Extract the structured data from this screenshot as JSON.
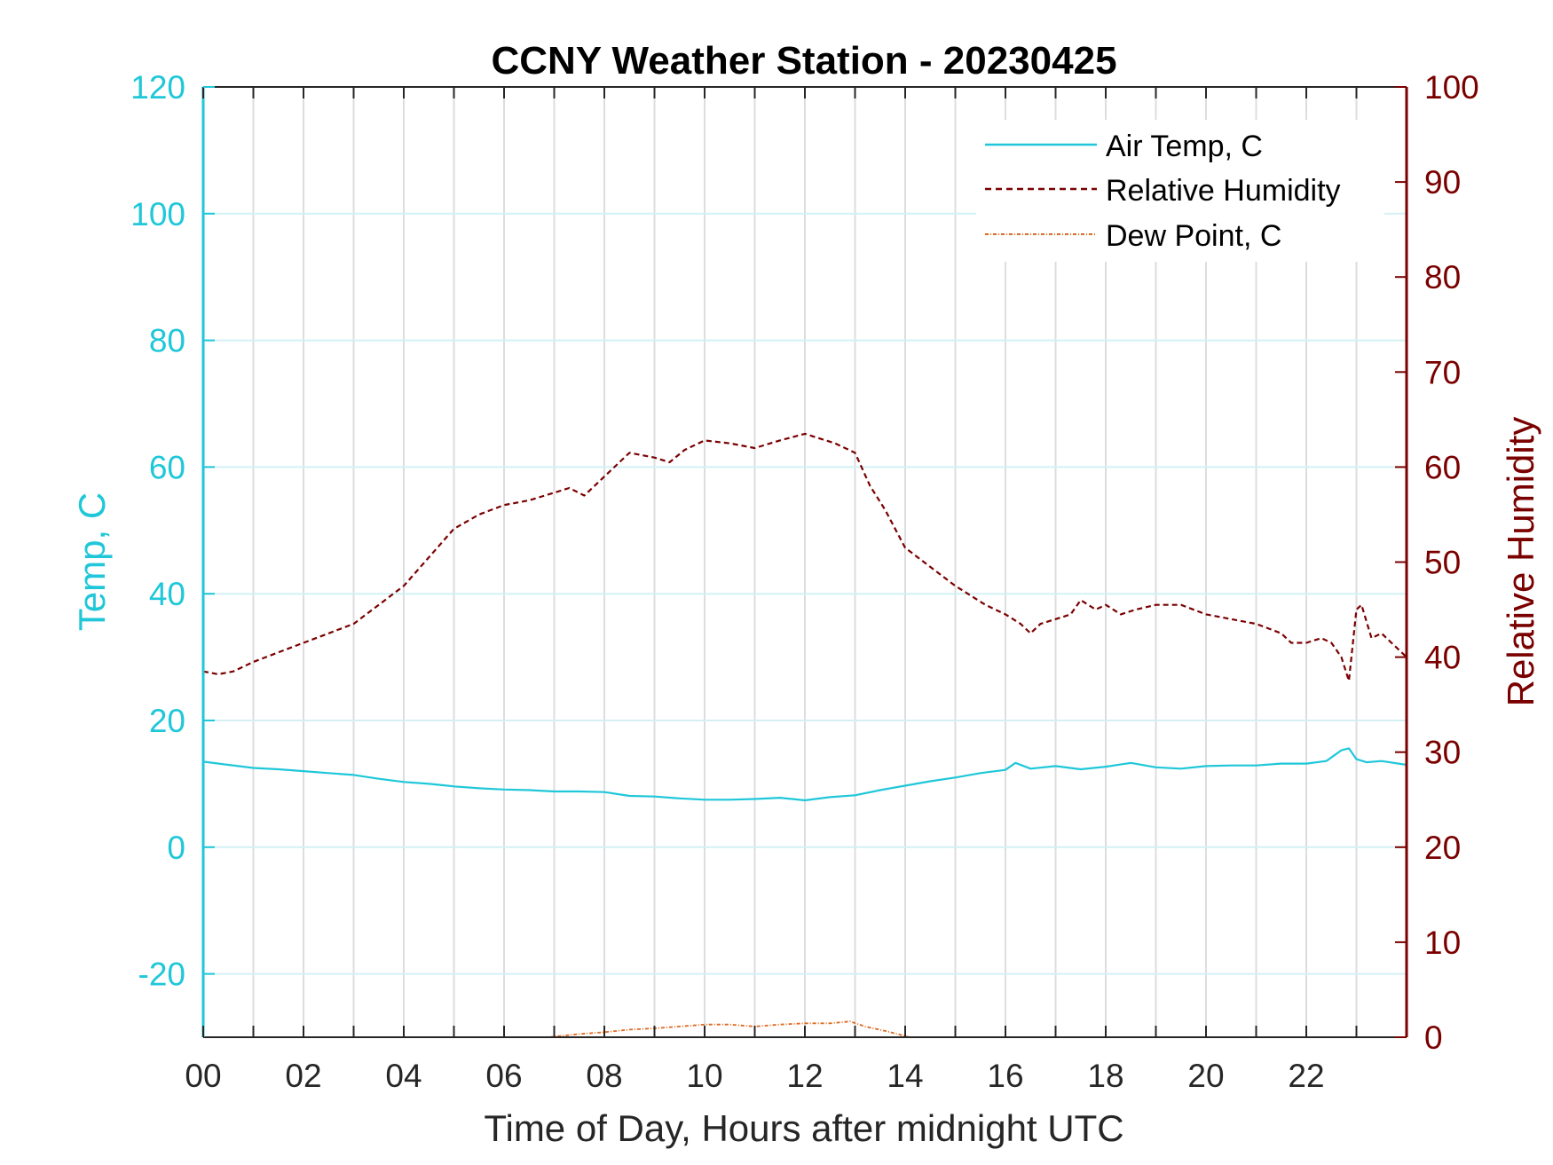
{
  "chart_data": {
    "type": "line",
    "title": "CCNY Weather Station - 20230425",
    "xlabel": "Time of Day, Hours after midnight UTC",
    "ylabel_left": "Temp, C",
    "ylabel_right": "Relative Humidity",
    "xlim": [
      0,
      24
    ],
    "ylim_left": [
      -30,
      120
    ],
    "ylim_right": [
      0,
      100
    ],
    "x_ticks": [
      "00",
      "02",
      "04",
      "06",
      "08",
      "10",
      "12",
      "14",
      "16",
      "18",
      "20",
      "22"
    ],
    "y_ticks_left": [
      "-20",
      "0",
      "20",
      "40",
      "60",
      "80",
      "100",
      "120"
    ],
    "y_ticks_right": [
      "0",
      "10",
      "20",
      "30",
      "40",
      "50",
      "60",
      "70",
      "80",
      "90",
      "100"
    ],
    "grid": "vertical lines at every hour, horizontal lines at left-axis ticks",
    "legend_position": "top-right",
    "colors": {
      "air_temp": "#1fc7d9",
      "relative_humidity": "#7a0000",
      "dew_point": "#e0681e",
      "left_axis": "#1fc7d9",
      "right_axis": "#7a0000"
    },
    "series": [
      {
        "name": "Air Temp, C",
        "axis": "left",
        "style": "solid",
        "x": [
          0,
          0.5,
          1,
          1.5,
          2,
          2.5,
          3,
          3.5,
          4,
          4.5,
          5,
          5.5,
          6,
          6.5,
          7,
          7.5,
          8,
          8.5,
          9,
          9.5,
          10,
          10.5,
          11,
          11.5,
          12,
          12.5,
          13,
          13.5,
          14,
          14.5,
          15,
          15.5,
          16,
          16.2,
          16.5,
          17,
          17.5,
          18,
          18.5,
          19,
          19.5,
          20,
          20.5,
          21,
          21.5,
          22,
          22.4,
          22.7,
          22.85,
          23,
          23.2,
          23.5,
          24
        ],
        "y": [
          13.5,
          13,
          12.5,
          12.3,
          12,
          11.7,
          11.4,
          10.8,
          10.3,
          10,
          9.6,
          9.3,
          9.1,
          9,
          8.8,
          8.8,
          8.7,
          8.1,
          8,
          7.7,
          7.5,
          7.5,
          7.6,
          7.8,
          7.4,
          7.9,
          8.2,
          9,
          9.7,
          10.4,
          11,
          11.7,
          12.2,
          13.3,
          12.4,
          12.8,
          12.3,
          12.7,
          13.3,
          12.6,
          12.4,
          12.8,
          12.9,
          12.9,
          13.2,
          13.2,
          13.6,
          15.3,
          15.6,
          13.9,
          13.4,
          13.6,
          13
        ]
      },
      {
        "name": "Relative Humidity",
        "axis": "right",
        "style": "dashed",
        "x": [
          0,
          0.3,
          0.6,
          1,
          1.5,
          2,
          2.5,
          3,
          3.5,
          4,
          4.5,
          5,
          5.5,
          6,
          6.5,
          7,
          7.3,
          7.6,
          8,
          8.5,
          9,
          9.3,
          9.6,
          10,
          10.5,
          11,
          11.5,
          12,
          12.3,
          12.6,
          13,
          13.3,
          13.6,
          14,
          14.5,
          15,
          15.3,
          15.6,
          16,
          16.3,
          16.5,
          16.7,
          17,
          17.3,
          17.5,
          17.8,
          18,
          18.3,
          18.6,
          19,
          19.5,
          20,
          20.5,
          21,
          21.5,
          21.7,
          22,
          22.3,
          22.5,
          22.7,
          22.85,
          23,
          23.1,
          23.3,
          23.5,
          23.7,
          24
        ],
        "y": [
          38.5,
          38.2,
          38.5,
          39.5,
          40.5,
          41.5,
          42.5,
          43.5,
          45.5,
          47.5,
          50.5,
          53.5,
          55,
          56,
          56.5,
          57.3,
          57.8,
          57,
          59,
          61.5,
          61,
          60.5,
          61.8,
          62.8,
          62.5,
          62,
          62.8,
          63.5,
          63,
          62.5,
          61.5,
          58,
          55.5,
          51.5,
          49.5,
          47.5,
          46.5,
          45.5,
          44.5,
          43.5,
          42.5,
          43.5,
          44,
          44.5,
          46,
          45,
          45.5,
          44.5,
          45,
          45.5,
          45.5,
          44.5,
          44,
          43.5,
          42.5,
          41.5,
          41.5,
          42,
          41.5,
          40,
          37.5,
          45,
          45.5,
          42,
          42.5,
          41.5,
          40
        ]
      },
      {
        "name": "Dew Point, C",
        "axis": "left",
        "style": "dash-dot",
        "x": [
          5.8,
          6.5,
          7,
          7.5,
          8,
          8.5,
          9,
          9.5,
          10,
          10.5,
          11,
          11.5,
          12,
          12.5,
          12.9,
          13.2,
          13.6,
          14,
          14.3
        ],
        "y": [
          -30.8,
          -30.4,
          -29.9,
          -29.5,
          -29.2,
          -28.8,
          -28.6,
          -28.3,
          -28.0,
          -28.0,
          -28.3,
          -28.0,
          -27.8,
          -27.8,
          -27.5,
          -28.3,
          -29.0,
          -29.8,
          -30.5
        ]
      }
    ]
  }
}
